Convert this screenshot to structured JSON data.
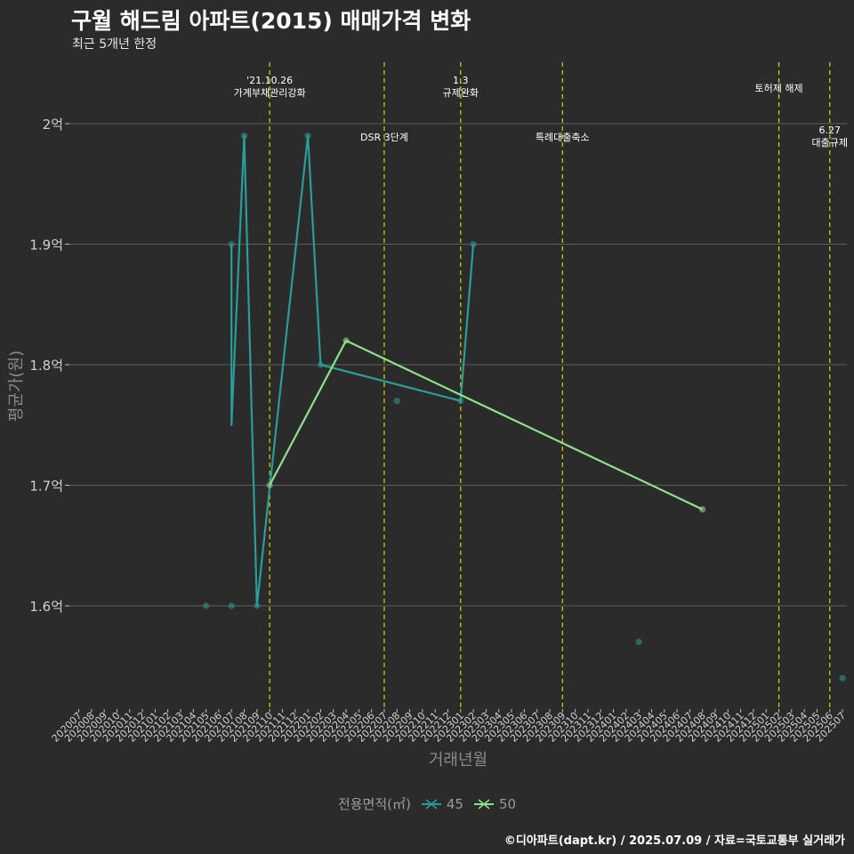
{
  "chart_data": {
    "type": "line",
    "title": "구월 해드림 아파트(2015) 매매가격 변화",
    "subtitle": "최근 5개년 한정",
    "xlabel": "거래년월",
    "ylabel": "평균가(원)",
    "caption": "©디아파트(dapt.kr) / 2025.07.09 / 자료=국토교통부 실거래가",
    "legend_title": "전용면적(㎡)",
    "legend_position": "bottom",
    "grid": true,
    "categories": [
      "202007",
      "202008",
      "202009",
      "202010",
      "202011",
      "202012",
      "202101",
      "202102",
      "202103",
      "202104",
      "202105",
      "202106",
      "202107",
      "202108",
      "202109",
      "202110",
      "202111",
      "202112",
      "202201",
      "202202",
      "202203",
      "202204",
      "202205",
      "202206",
      "202207",
      "202208",
      "202209",
      "202210",
      "202211",
      "202212",
      "202301",
      "202302",
      "202303",
      "202304",
      "202305",
      "202306",
      "202307",
      "202308",
      "202309",
      "202310",
      "202311",
      "202312",
      "202401",
      "202402",
      "202403",
      "202404",
      "202405",
      "202406",
      "202407",
      "202408",
      "202409",
      "202410",
      "202411",
      "202412",
      "202501",
      "202502",
      "202503",
      "202504",
      "202505",
      "202506",
      "202507"
    ],
    "y_ticks": [
      1.6,
      1.7,
      1.8,
      1.9,
      2.0
    ],
    "y_tick_labels": [
      "1.6억",
      "1.7억",
      "1.8억",
      "1.9억",
      "2억"
    ],
    "ylim": [
      1.535,
      2.05
    ],
    "y_unit": "억원",
    "series": [
      {
        "name": "45",
        "color": "#2a9d9a",
        "points": [
          {
            "x": "202105",
            "y": 1.6,
            "line": false
          },
          {
            "x": "202107",
            "y": 1.9,
            "line": true
          },
          {
            "x": "202107",
            "y": 1.75,
            "line": true,
            "marker": false
          },
          {
            "x": "202107",
            "y": 1.6,
            "line": false
          },
          {
            "x": "202108",
            "y": 1.99,
            "line": true
          },
          {
            "x": "202109",
            "y": 1.6,
            "line": true
          },
          {
            "x": "202201",
            "y": 1.99,
            "line": true
          },
          {
            "x": "202202",
            "y": 1.8,
            "line": true
          },
          {
            "x": "202208",
            "y": 1.77,
            "line": false
          },
          {
            "x": "202301",
            "y": 1.77,
            "line": true
          },
          {
            "x": "202302",
            "y": 1.9,
            "line": true
          },
          {
            "x": "202403",
            "y": 1.57,
            "line": false
          },
          {
            "x": "202507",
            "y": 1.54,
            "line": false
          }
        ]
      },
      {
        "name": "50",
        "color": "#8fe08a",
        "points": [
          {
            "x": "202110",
            "y": 1.7,
            "line": true
          },
          {
            "x": "202204",
            "y": 1.82,
            "line": true
          },
          {
            "x": "202408",
            "y": 1.68,
            "line": true
          }
        ]
      }
    ],
    "annotations": [
      {
        "x": "202110",
        "lines": [
          "'21.10.26",
          "가계부채관리강화"
        ],
        "row": 0
      },
      {
        "x": "202207",
        "lines": [
          "DSR 3단계"
        ],
        "row": 1
      },
      {
        "x": "202301",
        "lines": [
          "1.3",
          "규제완화"
        ],
        "row": 0
      },
      {
        "x": "202309",
        "lines": [
          "특례대출축소"
        ],
        "row": 1
      },
      {
        "x": "202502",
        "lines": [
          "토허제 해제"
        ],
        "row": 0
      },
      {
        "x": "202506",
        "lines": [
          "6.27",
          "대출규제"
        ],
        "row": 2
      }
    ],
    "colors": {
      "background": "#2b2b2b",
      "grid": "#5e5e5e",
      "event_line": "#d4d400"
    }
  }
}
